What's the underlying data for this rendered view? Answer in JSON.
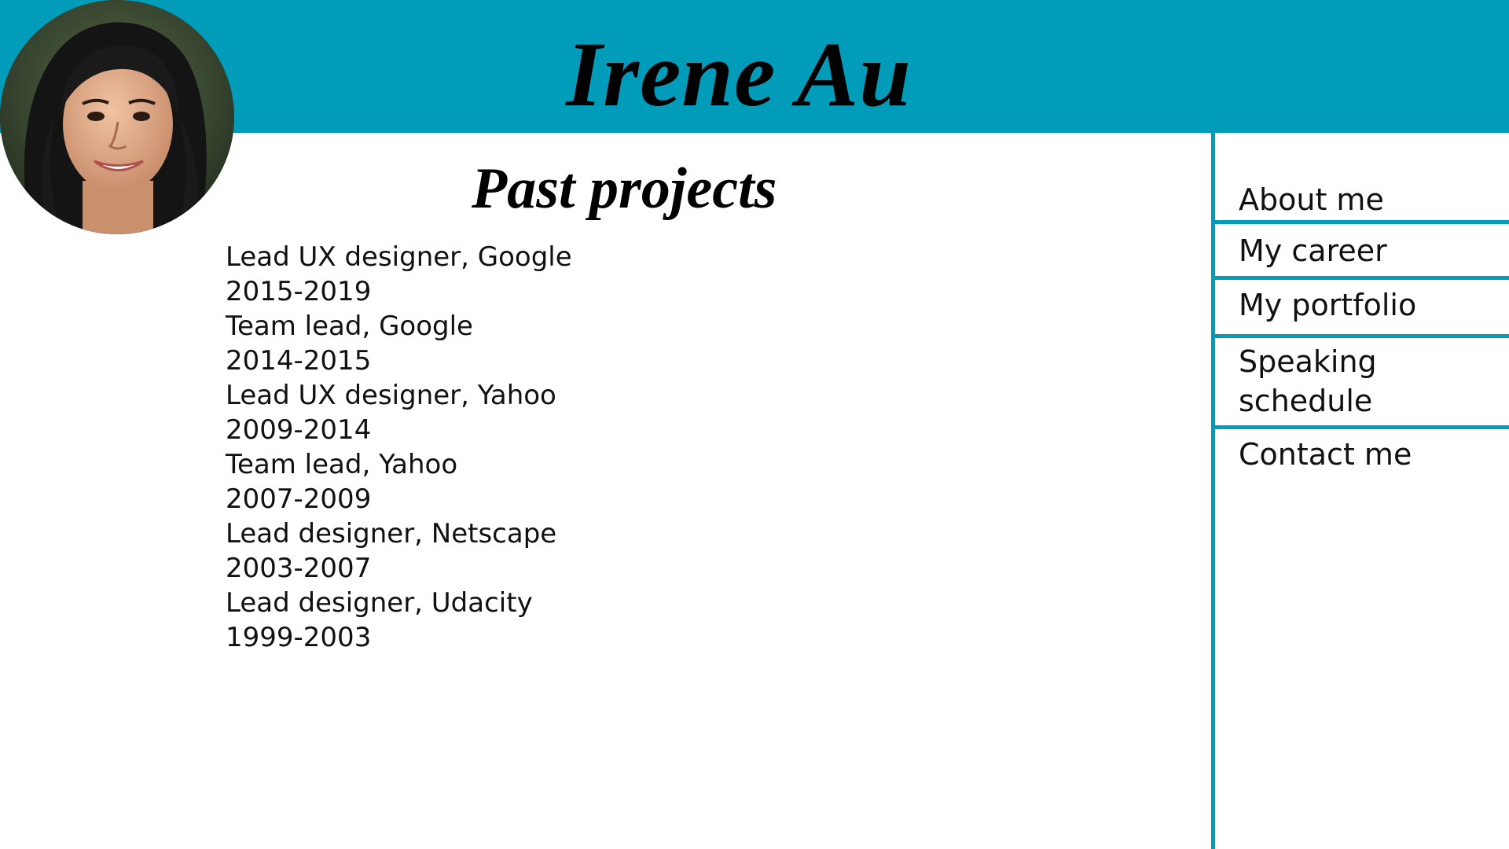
{
  "colors": {
    "accent": "#009cba",
    "text": "#111111",
    "background": "#ffffff"
  },
  "header": {
    "title": "Irene Au"
  },
  "avatar": {
    "icon": "profile-photo"
  },
  "main": {
    "section_title": "Past projects",
    "projects": [
      {
        "role": "Lead UX designer, Google",
        "years": "2015-2019"
      },
      {
        "role": "Team lead, Google",
        "years": "2014-2015"
      },
      {
        "role": "Lead UX designer, Yahoo",
        "years": "2009-2014"
      },
      {
        "role": "Team lead, Yahoo",
        "years": "2007-2009"
      },
      {
        "role": "Lead designer, Netscape",
        "years": "2003-2007"
      },
      {
        "role": "Lead designer, Udacity",
        "years": "1999-2003"
      }
    ]
  },
  "nav": {
    "items": [
      {
        "label": "About me"
      },
      {
        "label": "My career"
      },
      {
        "label": "My portfolio"
      },
      {
        "label": "Speaking schedule"
      },
      {
        "label": "Contact me"
      }
    ]
  }
}
